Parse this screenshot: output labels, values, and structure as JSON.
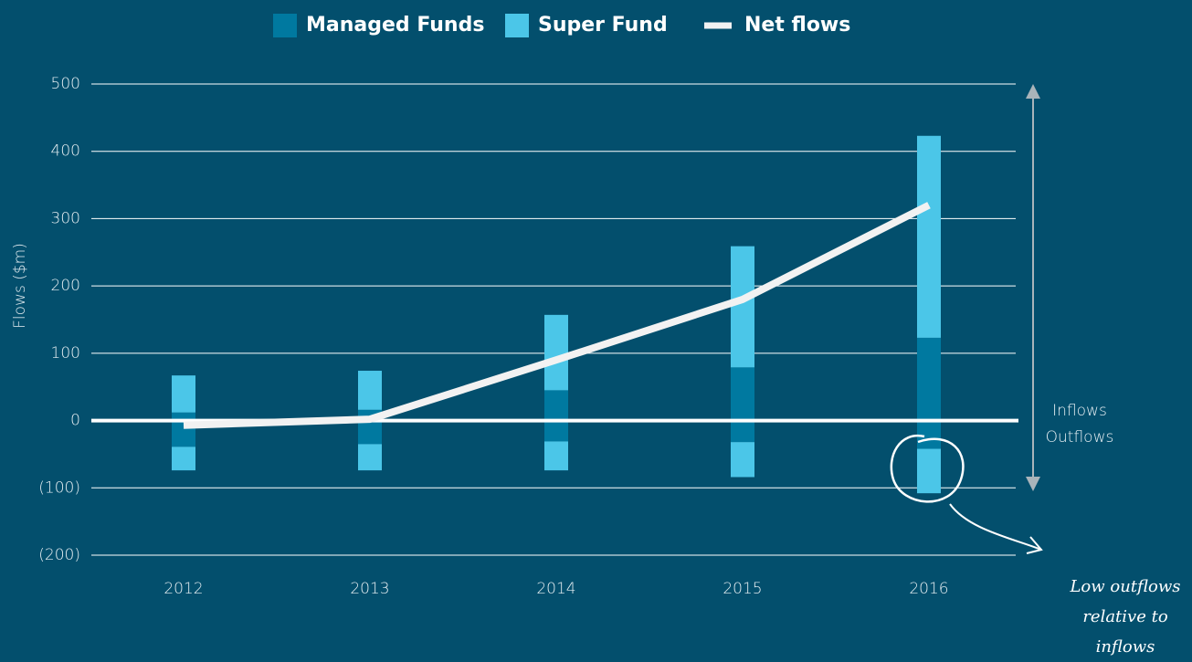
{
  "chart_data": {
    "type": "bar",
    "categories": [
      "2012",
      "2013",
      "2014",
      "2015",
      "2016"
    ],
    "series": [
      {
        "name": "Managed Funds",
        "color": "#0079a0",
        "inflows": [
          12,
          16,
          45,
          79,
          123
        ],
        "outflows": [
          -39,
          -35,
          -31,
          -32,
          -42
        ]
      },
      {
        "name": "Super Fund",
        "color": "#4bc6e8",
        "inflows": [
          55,
          58,
          112,
          180,
          300
        ],
        "outflows": [
          -35,
          -39,
          -43,
          -52,
          -66
        ]
      },
      {
        "name": "Net flows",
        "type": "line",
        "color": "#f2f2f2",
        "values": [
          -7,
          2,
          90,
          180,
          320
        ]
      }
    ],
    "y_label": "Flows ($m)",
    "ylim": [
      -200,
      500
    ],
    "yticks": [
      {
        "value": -200,
        "label": "(200)"
      },
      {
        "value": -100,
        "label": "(100)"
      },
      0,
      100,
      200,
      300,
      400,
      500
    ],
    "grid": true,
    "legend": "top",
    "annotations": [
      "Inflows",
      "Outflows",
      "Low outflows relative to inflows"
    ]
  }
}
